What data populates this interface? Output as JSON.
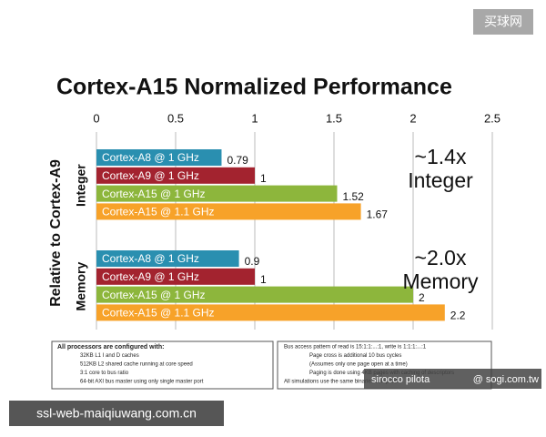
{
  "chart_data": {
    "type": "bar",
    "orientation": "horizontal",
    "title": "Cortex-A15 Normalized Performance",
    "ylabel": "Relative to Cortex-A9",
    "categories": [
      "Integer",
      "Memory"
    ],
    "series": [
      {
        "name": "Cortex-A8 @ 1 GHz",
        "color": "#2a8fb0",
        "values": [
          0.79,
          0.9
        ]
      },
      {
        "name": "Cortex-A9 @ 1 GHz",
        "color": "#a3232f",
        "values": [
          1,
          1
        ]
      },
      {
        "name": "Cortex-A15 @ 1 GHz",
        "color": "#8db63c",
        "values": [
          1.52,
          2
        ]
      },
      {
        "name": "Cortex-A15 @ 1.1 GHz",
        "color": "#f7a229",
        "values": [
          1.67,
          2.2
        ]
      }
    ],
    "xlim": [
      0,
      2.5
    ],
    "xticks": [
      0,
      0.5,
      1,
      1.5,
      2,
      2.5
    ],
    "grid": true,
    "annotations": [
      [
        "~1.4x",
        "Integer"
      ],
      [
        "~2.0x",
        "Memory"
      ]
    ],
    "notes": {
      "left": [
        "All processors are configured with:",
        "32KB L1 I and D caches",
        "512KB L2 shared cache running at core speed",
        "3:1 core to bus ratio",
        "64-bit AXI bus master using only single master port"
      ],
      "right": [
        "Bus access pattern of read is 15:1:1:...:1, write is 1:1:1:...:1",
        "Page cross is additional 10 bus cycles",
        "(Assumes only one page open at a time)",
        "Paging is done using 4KB pages with caching of descriptors",
        "All simulations use the same binaries compiled"
      ]
    },
    "watermarks": [
      "买球网",
      "ssl-web-maiqiuwang.com.cn",
      "sirocco pilota",
      "@ sogi.com.tw"
    ]
  }
}
